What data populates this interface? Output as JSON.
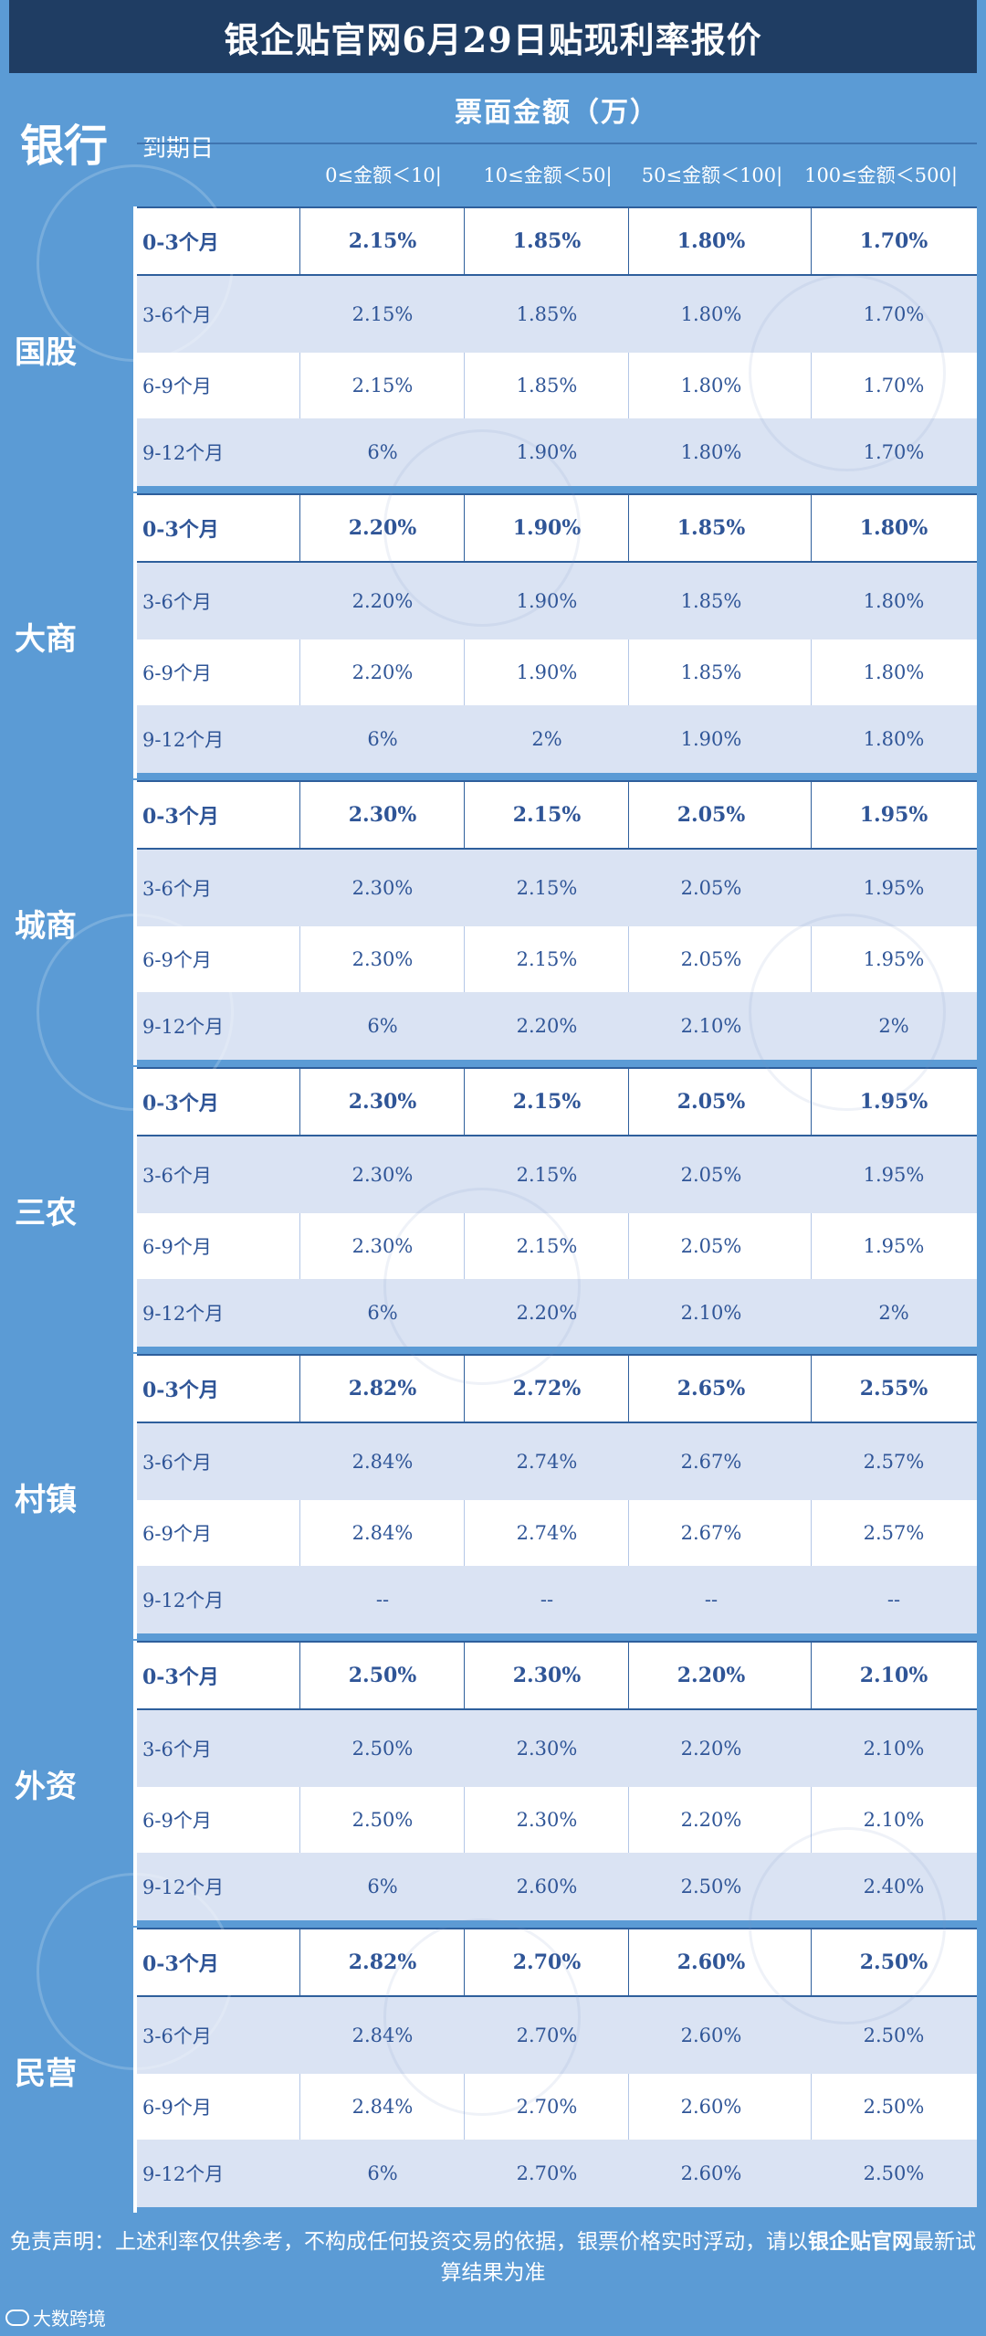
{
  "title": "银企贴官网6月29日贴现利率报价",
  "header": {
    "bank": "银行",
    "expiry": "到期日",
    "amount": "票面金额（万）",
    "columns": [
      "0≤金额＜10|",
      "10≤金额＜50|",
      "50≤金额＜100|",
      "100≤金额＜500|"
    ]
  },
  "groups": [
    {
      "name": "国股",
      "rows": [
        {
          "term": "0-3个月",
          "values": [
            "2.15%",
            "1.85%",
            "1.80%",
            "1.70%"
          ]
        },
        {
          "term": "3-6个月",
          "values": [
            "2.15%",
            "1.85%",
            "1.80%",
            "1.70%"
          ]
        },
        {
          "term": "6-9个月",
          "values": [
            "2.15%",
            "1.85%",
            "1.80%",
            "1.70%"
          ]
        },
        {
          "term": "9-12个月",
          "values": [
            "6%",
            "1.90%",
            "1.80%",
            "1.70%"
          ]
        }
      ]
    },
    {
      "name": "大商",
      "rows": [
        {
          "term": "0-3个月",
          "values": [
            "2.20%",
            "1.90%",
            "1.85%",
            "1.80%"
          ]
        },
        {
          "term": "3-6个月",
          "values": [
            "2.20%",
            "1.90%",
            "1.85%",
            "1.80%"
          ]
        },
        {
          "term": "6-9个月",
          "values": [
            "2.20%",
            "1.90%",
            "1.85%",
            "1.80%"
          ]
        },
        {
          "term": "9-12个月",
          "values": [
            "6%",
            "2%",
            "1.90%",
            "1.80%"
          ]
        }
      ]
    },
    {
      "name": "城商",
      "rows": [
        {
          "term": "0-3个月",
          "values": [
            "2.30%",
            "2.15%",
            "2.05%",
            "1.95%"
          ]
        },
        {
          "term": "3-6个月",
          "values": [
            "2.30%",
            "2.15%",
            "2.05%",
            "1.95%"
          ]
        },
        {
          "term": "6-9个月",
          "values": [
            "2.30%",
            "2.15%",
            "2.05%",
            "1.95%"
          ]
        },
        {
          "term": "9-12个月",
          "values": [
            "6%",
            "2.20%",
            "2.10%",
            "2%"
          ]
        }
      ]
    },
    {
      "name": "三农",
      "rows": [
        {
          "term": "0-3个月",
          "values": [
            "2.30%",
            "2.15%",
            "2.05%",
            "1.95%"
          ]
        },
        {
          "term": "3-6个月",
          "values": [
            "2.30%",
            "2.15%",
            "2.05%",
            "1.95%"
          ]
        },
        {
          "term": "6-9个月",
          "values": [
            "2.30%",
            "2.15%",
            "2.05%",
            "1.95%"
          ]
        },
        {
          "term": "9-12个月",
          "values": [
            "6%",
            "2.20%",
            "2.10%",
            "2%"
          ]
        }
      ]
    },
    {
      "name": "村镇",
      "rows": [
        {
          "term": "0-3个月",
          "values": [
            "2.82%",
            "2.72%",
            "2.65%",
            "2.55%"
          ]
        },
        {
          "term": "3-6个月",
          "values": [
            "2.84%",
            "2.74%",
            "2.67%",
            "2.57%"
          ]
        },
        {
          "term": "6-9个月",
          "values": [
            "2.84%",
            "2.74%",
            "2.67%",
            "2.57%"
          ]
        },
        {
          "term": "9-12个月",
          "values": [
            "--",
            "--",
            "--",
            "--"
          ]
        }
      ]
    },
    {
      "name": "外资",
      "rows": [
        {
          "term": "0-3个月",
          "values": [
            "2.50%",
            "2.30%",
            "2.20%",
            "2.10%"
          ]
        },
        {
          "term": "3-6个月",
          "values": [
            "2.50%",
            "2.30%",
            "2.20%",
            "2.10%"
          ]
        },
        {
          "term": "6-9个月",
          "values": [
            "2.50%",
            "2.30%",
            "2.20%",
            "2.10%"
          ]
        },
        {
          "term": "9-12个月",
          "values": [
            "6%",
            "2.60%",
            "2.50%",
            "2.40%"
          ]
        }
      ]
    },
    {
      "name": "民营",
      "rows": [
        {
          "term": "0-3个月",
          "values": [
            "2.82%",
            "2.70%",
            "2.60%",
            "2.50%"
          ]
        },
        {
          "term": "3-6个月",
          "values": [
            "2.84%",
            "2.70%",
            "2.60%",
            "2.50%"
          ]
        },
        {
          "term": "6-9个月",
          "values": [
            "2.84%",
            "2.70%",
            "2.60%",
            "2.50%"
          ]
        },
        {
          "term": "9-12个月",
          "values": [
            "6%",
            "2.70%",
            "2.60%",
            "2.50%"
          ]
        }
      ]
    }
  ],
  "disclaimer": {
    "prefix": "免责声明：上述利率仅供参考，不构成任何投资交易的依据，银票价格实时浮动，请以",
    "brand": "银企贴官网",
    "suffix": "最新试算结果为准"
  },
  "footer_logo": "大数跨境",
  "colors": {
    "title_bg": "#1f3d63",
    "header_bg": "#5b9bd5",
    "row_alt": "#dae3f3",
    "text": "#2f5597"
  }
}
